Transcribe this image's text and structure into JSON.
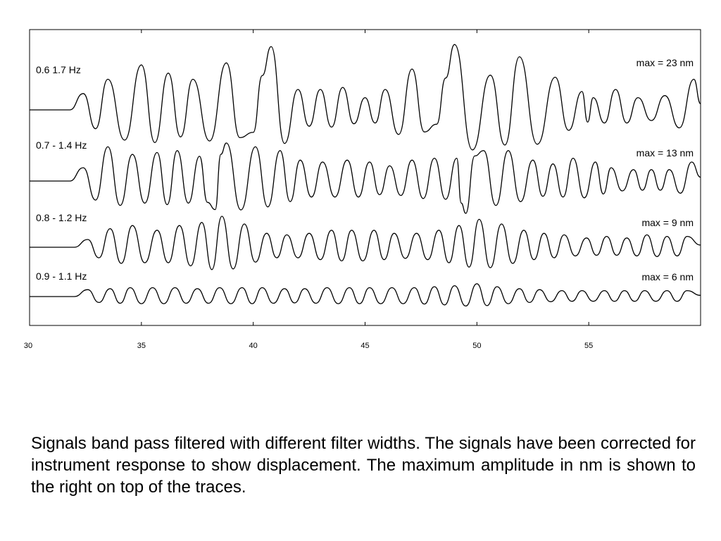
{
  "chart_data": {
    "type": "line",
    "xlim": [
      30,
      60
    ],
    "x_ticks": [
      30,
      35,
      40,
      45,
      50,
      55
    ],
    "grid": false,
    "legend": "none",
    "trace_color": "#000000",
    "series": [
      {
        "name": "0.6 1.7 Hz",
        "max_label": "max = 23 nm",
        "start": 31.8,
        "peaks": [
          [
            32.4,
            0.4
          ],
          [
            33.5,
            0.75
          ],
          [
            35.0,
            1.1
          ],
          [
            36.2,
            0.9
          ],
          [
            37.3,
            0.75
          ],
          [
            38.8,
            1.15
          ],
          [
            40.0,
            -0.55
          ],
          [
            40.8,
            1.55
          ],
          [
            42.0,
            0.5
          ],
          [
            43.0,
            0.5
          ],
          [
            44.0,
            0.55
          ],
          [
            45.0,
            0.3
          ],
          [
            45.9,
            0.5
          ],
          [
            47.1,
            1.0
          ],
          [
            48.2,
            -0.35
          ],
          [
            49.0,
            1.6
          ],
          [
            50.6,
            0.85
          ],
          [
            51.9,
            1.3
          ],
          [
            53.5,
            0.8
          ],
          [
            54.7,
            0.45
          ],
          [
            55.2,
            0.3
          ],
          [
            56.2,
            0.5
          ],
          [
            57.2,
            0.3
          ],
          [
            58.4,
            0.35
          ],
          [
            59.7,
            0.75
          ]
        ]
      },
      {
        "name": "0.7 - 1.4 Hz",
        "max_label": "max = 13 nm",
        "start": 31.8,
        "peaks": [
          [
            32.4,
            0.35
          ],
          [
            33.5,
            0.9
          ],
          [
            34.6,
            0.7
          ],
          [
            35.7,
            0.75
          ],
          [
            36.6,
            0.8
          ],
          [
            37.6,
            0.65
          ],
          [
            38.3,
            -0.75
          ],
          [
            38.8,
            1.0
          ],
          [
            40.1,
            0.9
          ],
          [
            41.2,
            0.8
          ],
          [
            42.1,
            0.55
          ],
          [
            43.1,
            0.5
          ],
          [
            44.2,
            0.55
          ],
          [
            45.2,
            0.5
          ],
          [
            46.1,
            0.4
          ],
          [
            47.1,
            0.55
          ],
          [
            48.1,
            0.6
          ],
          [
            49.1,
            0.6
          ],
          [
            49.5,
            -0.85
          ],
          [
            50.3,
            0.8
          ],
          [
            51.4,
            0.8
          ],
          [
            52.5,
            0.55
          ],
          [
            53.4,
            0.45
          ],
          [
            54.3,
            0.6
          ],
          [
            55.3,
            0.5
          ],
          [
            56.0,
            0.35
          ],
          [
            57.0,
            0.3
          ],
          [
            57.8,
            0.3
          ],
          [
            58.6,
            0.3
          ],
          [
            59.6,
            0.5
          ]
        ]
      },
      {
        "name": "0.8 - 1.2 Hz",
        "max_label": "max = 9 nm",
        "start": 32.0,
        "peaks": [
          [
            32.6,
            0.25
          ],
          [
            33.6,
            0.6
          ],
          [
            34.6,
            0.7
          ],
          [
            35.7,
            0.55
          ],
          [
            36.7,
            0.7
          ],
          [
            37.7,
            0.8
          ],
          [
            38.6,
            1.0
          ],
          [
            39.6,
            0.75
          ],
          [
            40.6,
            0.45
          ],
          [
            41.5,
            0.4
          ],
          [
            42.5,
            0.45
          ],
          [
            43.5,
            0.55
          ],
          [
            44.4,
            0.55
          ],
          [
            45.4,
            0.55
          ],
          [
            46.3,
            0.45
          ],
          [
            47.3,
            0.45
          ],
          [
            48.3,
            0.55
          ],
          [
            49.2,
            0.7
          ],
          [
            50.1,
            0.9
          ],
          [
            51.1,
            0.75
          ],
          [
            52.1,
            0.55
          ],
          [
            53.0,
            0.45
          ],
          [
            53.9,
            0.4
          ],
          [
            54.9,
            0.3
          ],
          [
            55.8,
            0.35
          ],
          [
            56.7,
            0.3
          ],
          [
            57.6,
            0.4
          ],
          [
            58.5,
            0.35
          ],
          [
            59.4,
            0.35
          ]
        ]
      },
      {
        "name": "0.9 -  1.1 Hz",
        "max_label": "max = 6 nm",
        "start": 32.0,
        "peaks": [
          [
            32.6,
            0.35
          ],
          [
            33.6,
            0.4
          ],
          [
            34.5,
            0.45
          ],
          [
            35.5,
            0.45
          ],
          [
            36.5,
            0.45
          ],
          [
            37.5,
            0.4
          ],
          [
            38.5,
            0.45
          ],
          [
            39.5,
            0.45
          ],
          [
            40.4,
            0.45
          ],
          [
            41.4,
            0.4
          ],
          [
            42.3,
            0.4
          ],
          [
            43.3,
            0.45
          ],
          [
            44.3,
            0.45
          ],
          [
            45.2,
            0.45
          ],
          [
            46.2,
            0.45
          ],
          [
            47.2,
            0.45
          ],
          [
            48.1,
            0.5
          ],
          [
            49.0,
            0.55
          ],
          [
            50.0,
            0.65
          ],
          [
            50.9,
            0.5
          ],
          [
            51.9,
            0.4
          ],
          [
            52.8,
            0.35
          ],
          [
            53.8,
            0.3
          ],
          [
            54.7,
            0.3
          ],
          [
            55.7,
            0.3
          ],
          [
            56.6,
            0.3
          ],
          [
            57.5,
            0.3
          ],
          [
            58.5,
            0.3
          ],
          [
            59.4,
            0.3
          ]
        ]
      }
    ]
  },
  "caption": "Signals band pass filtered with different filter widths. The signals have been corrected for instrument response to show displacement. The maximum amplitude in nm is shown to the right on top of the traces."
}
